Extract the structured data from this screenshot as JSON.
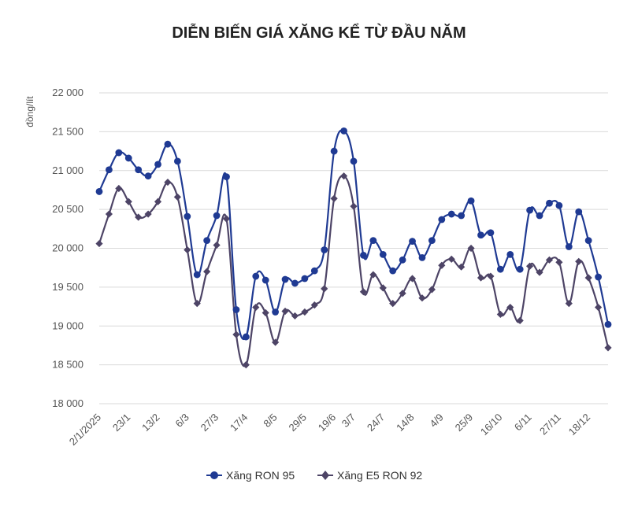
{
  "chart_data": {
    "type": "line",
    "title": "DIỄN BIẾN GIÁ XĂNG KỂ TỪ ĐẦU NĂM",
    "ylabel": "đồng/lít",
    "xlabel": "",
    "ylim": [
      18000,
      22000
    ],
    "yticks": [
      18000,
      18500,
      19000,
      19500,
      20000,
      20500,
      21000,
      21500,
      22000
    ],
    "ytick_labels": [
      "18 000",
      "18 500",
      "19 000",
      "19 500",
      "20 000",
      "20 500",
      "21 000",
      "21 500",
      "22 000"
    ],
    "xtick_labels": [
      "2/1/2025",
      "23/1",
      "13/2",
      "6/3",
      "27/3",
      "17/4",
      "8/5",
      "29/5",
      "19/6",
      "3/7",
      "24/7",
      "14/8",
      "4/9",
      "25/9",
      "16/10",
      "6/11",
      "27/11",
      "18/12"
    ],
    "xtick_index": [
      0,
      3,
      6,
      9,
      12,
      15,
      18,
      21,
      24,
      26,
      29,
      32,
      35,
      38,
      41,
      44,
      47,
      50
    ],
    "grid": true,
    "legend_position": "bottom",
    "series": [
      {
        "name": "Xăng RON 95",
        "color": "#1f3a93",
        "marker": "circle",
        "values": [
          20730,
          21010,
          21230,
          21160,
          21010,
          20930,
          21080,
          21340,
          21120,
          20410,
          19660,
          20100,
          20420,
          20920,
          19210,
          18860,
          19640,
          19590,
          19180,
          19600,
          19550,
          19610,
          19710,
          19980,
          21250,
          21510,
          21120,
          19910,
          20100,
          19920,
          19710,
          19850,
          20090,
          19880,
          20100,
          20370,
          20440,
          20420,
          20610,
          20170,
          20200,
          19730,
          19920,
          19730,
          20490,
          20420,
          20580,
          20550,
          20020,
          20470,
          20100,
          19630,
          19020
        ]
      },
      {
        "name": "Xăng E5 RON 92",
        "color": "#4d4466",
        "marker": "diamond",
        "values": [
          20060,
          20440,
          20770,
          20600,
          20400,
          20440,
          20600,
          20850,
          20660,
          19980,
          19290,
          19700,
          20040,
          20380,
          18890,
          18500,
          19240,
          19170,
          18790,
          19190,
          19130,
          19180,
          19270,
          19480,
          20640,
          20930,
          20540,
          19440,
          19660,
          19490,
          19290,
          19420,
          19610,
          19360,
          19470,
          19780,
          19860,
          19760,
          20000,
          19620,
          19640,
          19150,
          19240,
          19070,
          19770,
          19690,
          19850,
          19820,
          19290,
          19830,
          19620,
          19240,
          18720
        ]
      }
    ]
  }
}
